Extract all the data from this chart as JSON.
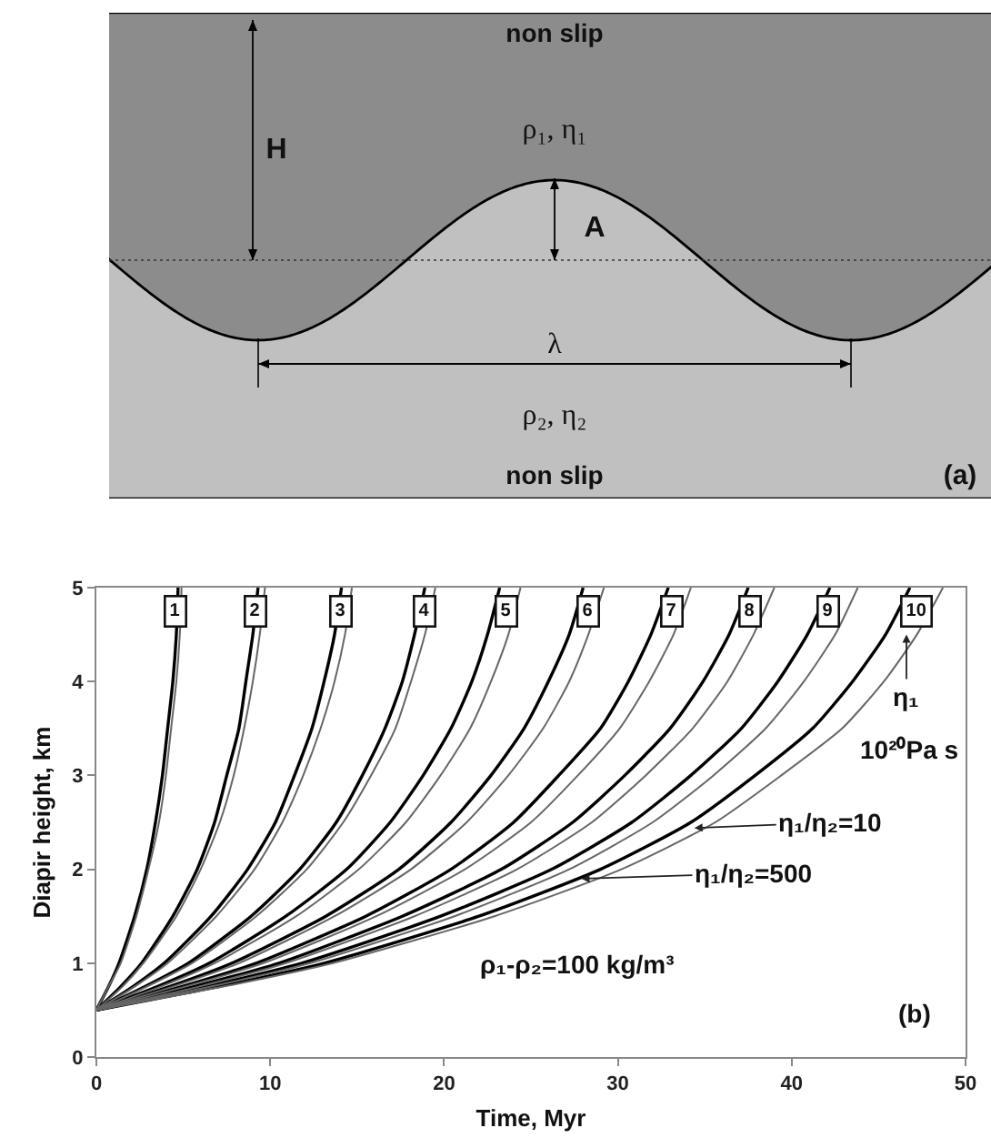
{
  "chart_data": [
    {
      "type": "other",
      "annotations": [
        "non slip",
        "ρ₁, η₁",
        "H",
        "A",
        "λ",
        "ρ₂, η₂",
        "non slip",
        "(a)"
      ]
    },
    {
      "type": "line",
      "xlabel": "Time, Myr",
      "ylabel": "Diapir height, km",
      "xlim": [
        0,
        50
      ],
      "ylim": [
        0,
        5
      ],
      "xticks": [
        0,
        10,
        20,
        30,
        40,
        50
      ],
      "yticks": [
        0,
        1,
        2,
        3,
        4,
        5
      ],
      "grid": false,
      "marker": "none",
      "line_style": "solid",
      "series": [
        {
          "color": "#000000",
          "x": [
            0,
            0.7,
            1.3,
            2.2,
            2.9,
            3.4,
            3.8,
            4.1,
            4.4,
            4.6,
            4.7
          ],
          "values": [
            0.5,
            0.75,
            1,
            1.5,
            2,
            2.5,
            3,
            3.5,
            4,
            4.5,
            5
          ]
        },
        {
          "color": "#000000",
          "x": [
            0,
            1.4,
            2.6,
            4.4,
            5.8,
            6.8,
            7.5,
            8.2,
            8.6,
            9.0,
            9.3
          ],
          "values": [
            0.5,
            0.75,
            1,
            1.5,
            2,
            2.5,
            3,
            3.5,
            4,
            4.5,
            5
          ]
        },
        {
          "color": "#000000",
          "x": [
            0,
            2.1,
            3.9,
            6.6,
            8.7,
            10.3,
            11.4,
            12.4,
            13.1,
            13.7,
            14.1
          ],
          "values": [
            0.5,
            0.75,
            1,
            1.5,
            2,
            2.5,
            3,
            3.5,
            4,
            4.5,
            5
          ]
        },
        {
          "color": "#000000",
          "x": [
            0,
            2.8,
            5.3,
            8.9,
            11.7,
            13.8,
            15.3,
            16.6,
            17.6,
            18.3,
            18.9
          ],
          "values": [
            0.5,
            0.75,
            1,
            1.5,
            2,
            2.5,
            3,
            3.5,
            4,
            4.5,
            5
          ]
        },
        {
          "color": "#000000",
          "x": [
            0,
            3.5,
            6.5,
            10.9,
            14.4,
            16.9,
            18.8,
            20.4,
            21.6,
            22.5,
            23.2
          ],
          "values": [
            0.5,
            0.75,
            1,
            1.5,
            2,
            2.5,
            3,
            3.5,
            4,
            4.5,
            5
          ]
        },
        {
          "color": "#000000",
          "x": [
            0,
            4.2,
            7.8,
            13.2,
            17.4,
            20.4,
            22.7,
            24.6,
            26.0,
            27.2,
            28.0
          ],
          "values": [
            0.5,
            0.75,
            1,
            1.5,
            2,
            2.5,
            3,
            3.5,
            4,
            4.5,
            5
          ]
        },
        {
          "color": "#000000",
          "x": [
            0,
            4.9,
            9.2,
            15.5,
            20.4,
            24.0,
            26.6,
            29.0,
            30.6,
            31.9,
            32.9
          ],
          "values": [
            0.5,
            0.75,
            1,
            1.5,
            2,
            2.5,
            3,
            3.5,
            4,
            4.5,
            5
          ]
        },
        {
          "color": "#000000",
          "x": [
            0,
            5.6,
            10.5,
            17.6,
            23.3,
            27.4,
            30.4,
            33.0,
            34.9,
            36.4,
            37.5
          ],
          "values": [
            0.5,
            0.75,
            1,
            1.5,
            2,
            2.5,
            3,
            3.5,
            4,
            4.5,
            5
          ]
        },
        {
          "color": "#000000",
          "x": [
            0,
            6.3,
            11.8,
            19.8,
            26.2,
            30.8,
            34.2,
            37.1,
            39.2,
            40.9,
            42.2
          ],
          "values": [
            0.5,
            0.75,
            1,
            1.5,
            2,
            2.5,
            3,
            3.5,
            4,
            4.5,
            5
          ]
        },
        {
          "color": "#000000",
          "x": [
            0,
            7.0,
            13.1,
            22.0,
            29.0,
            34.2,
            37.9,
            41.2,
            43.5,
            45.4,
            46.8
          ],
          "values": [
            0.5,
            0.75,
            1,
            1.5,
            2,
            2.5,
            3,
            3.5,
            4,
            4.5,
            5
          ]
        },
        {
          "color": "#666666",
          "x": [
            0,
            0.7,
            1.4,
            2.3,
            3.0,
            3.6,
            4.0,
            4.3,
            4.6,
            4.8,
            4.9
          ],
          "values": [
            0.5,
            0.75,
            1,
            1.5,
            2,
            2.5,
            3,
            3.5,
            4,
            4.5,
            5
          ]
        },
        {
          "color": "#666666",
          "x": [
            0,
            1.5,
            2.7,
            4.6,
            6.0,
            7.1,
            7.9,
            8.5,
            9.0,
            9.4,
            9.7
          ],
          "values": [
            0.5,
            0.75,
            1,
            1.5,
            2,
            2.5,
            3,
            3.5,
            4,
            4.5,
            5
          ]
        },
        {
          "color": "#666666",
          "x": [
            0,
            2.2,
            4.1,
            6.9,
            9.1,
            10.7,
            11.9,
            12.9,
            13.7,
            14.3,
            14.7
          ],
          "values": [
            0.5,
            0.75,
            1,
            1.5,
            2,
            2.5,
            3,
            3.5,
            4,
            4.5,
            5
          ]
        },
        {
          "color": "#666666",
          "x": [
            0,
            2.9,
            5.5,
            9.2,
            12.1,
            14.2,
            15.8,
            17.2,
            18.1,
            18.9,
            19.5
          ],
          "values": [
            0.5,
            0.75,
            1,
            1.5,
            2,
            2.5,
            3,
            3.5,
            4,
            4.5,
            5
          ]
        },
        {
          "color": "#666666",
          "x": [
            0,
            3.7,
            6.8,
            11.5,
            15.1,
            17.8,
            19.8,
            21.5,
            22.7,
            23.7,
            24.4
          ],
          "values": [
            0.5,
            0.75,
            1,
            1.5,
            2,
            2.5,
            3,
            3.5,
            4,
            4.5,
            5
          ]
        },
        {
          "color": "#666666",
          "x": [
            0,
            4.4,
            8.2,
            13.7,
            18.1,
            21.3,
            23.7,
            25.7,
            27.2,
            28.3,
            29.2
          ],
          "values": [
            0.5,
            0.75,
            1,
            1.5,
            2,
            2.5,
            3,
            3.5,
            4,
            4.5,
            5
          ]
        },
        {
          "color": "#666666",
          "x": [
            0,
            5.1,
            9.6,
            16.1,
            21.2,
            25.0,
            27.7,
            30.1,
            31.8,
            33.2,
            34.2
          ],
          "values": [
            0.5,
            0.75,
            1,
            1.5,
            2,
            2.5,
            3,
            3.5,
            4,
            4.5,
            5
          ]
        },
        {
          "color": "#666666",
          "x": [
            0,
            5.9,
            10.9,
            18.3,
            24.2,
            28.5,
            31.6,
            34.3,
            36.3,
            37.8,
            39.0
          ],
          "values": [
            0.5,
            0.75,
            1,
            1.5,
            2,
            2.5,
            3,
            3.5,
            4,
            4.5,
            5
          ]
        },
        {
          "color": "#666666",
          "x": [
            0,
            6.6,
            12.3,
            20.6,
            27.2,
            32.0,
            35.5,
            38.5,
            40.7,
            42.5,
            43.8
          ],
          "values": [
            0.5,
            0.75,
            1,
            1.5,
            2,
            2.5,
            3,
            3.5,
            4,
            4.5,
            5
          ]
        },
        {
          "color": "#666666",
          "x": [
            0,
            7.3,
            13.6,
            22.9,
            30.2,
            35.6,
            39.4,
            42.9,
            45.3,
            47.2,
            48.7
          ],
          "values": [
            0.5,
            0.75,
            1,
            1.5,
            2,
            2.5,
            3,
            3.5,
            4,
            4.5,
            5
          ]
        }
      ],
      "annotations": [
        {
          "text": "1",
          "x": 4.6,
          "y": 4.75
        },
        {
          "text": "2",
          "x": 9.2,
          "y": 4.75
        },
        {
          "text": "3",
          "x": 14.1,
          "y": 4.75
        },
        {
          "text": "4",
          "x": 18.9,
          "y": 4.75
        },
        {
          "text": "5",
          "x": 23.6,
          "y": 4.75
        },
        {
          "text": "6",
          "x": 28.3,
          "y": 4.75
        },
        {
          "text": "7",
          "x": 33.1,
          "y": 4.75
        },
        {
          "text": "8",
          "x": 37.6,
          "y": 4.75
        },
        {
          "text": "9",
          "x": 42.1,
          "y": 4.75
        },
        {
          "text": "10",
          "x": 47.2,
          "y": 4.75
        },
        {
          "text": "η₁",
          "x": 46.6,
          "y": 4.5
        },
        "10²⁰Pa s",
        {
          "text": "η₁/η₂=10",
          "x": 34.4,
          "y": 2.44
        },
        {
          "text": "η₁/η₂=500",
          "x": 27.9,
          "y": 1.9
        },
        "ρ₁-ρ₂=100 kg/m³",
        "(b)"
      ]
    }
  ]
}
